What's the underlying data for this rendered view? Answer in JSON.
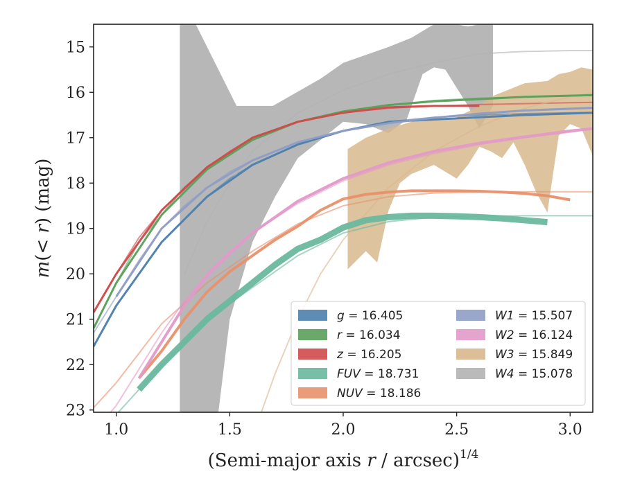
{
  "chart_data": {
    "type": "line",
    "title": "",
    "xlabel": "(Semi-major axis r / arcsec)",
    "xlabel_parts": {
      "prefix": "(Semi-major axis ",
      "var": "r",
      "suffix": " / arcsec)",
      "exponent": "1/4"
    },
    "ylabel": "m(< r) (mag)",
    "ylabel_parts": {
      "var": "m",
      "paren_open": "(< ",
      "r": "r",
      "paren_close": ")",
      "unit": " (mag)"
    },
    "xlim": [
      0.9,
      3.1
    ],
    "ylim": [
      23.05,
      14.5
    ],
    "y_inverted": true,
    "x_ticks": [
      1.0,
      1.5,
      2.0,
      2.5,
      3.0
    ],
    "x_tick_labels": [
      "1.0",
      "1.5",
      "2.0",
      "2.5",
      "3.0"
    ],
    "y_ticks": [
      15,
      16,
      17,
      18,
      19,
      20,
      21,
      22,
      23
    ],
    "y_tick_labels": [
      "15",
      "16",
      "17",
      "18",
      "19",
      "20",
      "21",
      "22",
      "23"
    ],
    "grid": false,
    "legend_position": "lower-right",
    "series": [
      {
        "name": "g",
        "value": "16.405",
        "color": "#4e7fad",
        "model": {
          "x": [
            0.9,
            1.0,
            1.1,
            1.2,
            1.3,
            1.4,
            1.5,
            1.6,
            1.8,
            2.0,
            2.2,
            2.4,
            2.6,
            2.8,
            3.0,
            3.1
          ],
          "y": [
            21.6,
            20.7,
            20.0,
            19.3,
            18.8,
            18.3,
            17.9,
            17.6,
            17.15,
            16.85,
            16.65,
            16.55,
            16.5,
            16.47,
            16.45,
            16.44
          ]
        },
        "data": {
          "x": [
            0.9,
            1.0,
            1.2,
            1.4,
            1.6,
            1.8,
            2.0,
            2.2,
            2.4,
            2.6,
            2.8,
            3.1
          ],
          "y": [
            21.6,
            20.7,
            19.3,
            18.3,
            17.6,
            17.15,
            16.85,
            16.65,
            16.6,
            16.55,
            16.5,
            16.45
          ],
          "width": 3
        }
      },
      {
        "name": "r",
        "value": "16.034",
        "color": "#5aa05a",
        "model": {
          "x": [
            0.9,
            1.0,
            1.1,
            1.2,
            1.3,
            1.4,
            1.5,
            1.6,
            1.8,
            2.0,
            2.2,
            2.4,
            2.6,
            2.8,
            3.0,
            3.1
          ],
          "y": [
            21.2,
            20.2,
            19.3,
            18.7,
            18.1,
            17.7,
            17.35,
            17.05,
            16.65,
            16.42,
            16.28,
            16.18,
            16.13,
            16.1,
            16.08,
            16.07
          ]
        },
        "data": {
          "x": [
            0.9,
            1.0,
            1.2,
            1.4,
            1.6,
            1.8,
            2.0,
            2.2,
            2.4,
            2.6,
            2.8,
            3.1
          ],
          "y": [
            21.2,
            20.2,
            18.7,
            17.7,
            17.05,
            16.65,
            16.42,
            16.28,
            16.2,
            16.15,
            16.1,
            16.06
          ],
          "width": 3
        }
      },
      {
        "name": "z",
        "value": "16.205",
        "color": "#d04a4a",
        "model": {
          "x": [
            0.9,
            1.0,
            1.1,
            1.2,
            1.3,
            1.4,
            1.5,
            1.6,
            1.8,
            2.0,
            2.2,
            2.4,
            2.6,
            2.8,
            3.0,
            3.1
          ],
          "y": [
            20.85,
            20.0,
            19.2,
            18.6,
            18.1,
            17.65,
            17.3,
            17.0,
            16.65,
            16.45,
            16.35,
            16.3,
            16.27,
            16.25,
            16.23,
            16.22
          ]
        },
        "data": {
          "x": [
            0.9,
            1.0,
            1.2,
            1.4,
            1.6,
            1.8,
            2.0,
            2.2,
            2.4,
            2.6
          ],
          "y": [
            20.85,
            20.0,
            18.6,
            17.65,
            17.0,
            16.65,
            16.45,
            16.33,
            16.3,
            16.3
          ],
          "width": 3
        }
      },
      {
        "name": "FUV",
        "value": "18.731",
        "color": "#6ab89f",
        "model": {
          "x": [
            0.9,
            1.0,
            1.2,
            1.4,
            1.6,
            1.8,
            2.0,
            2.2,
            2.4,
            2.6,
            2.8,
            3.0,
            3.1
          ],
          "y": [
            23.8,
            23.1,
            22.0,
            21.0,
            20.3,
            19.6,
            19.1,
            18.85,
            18.75,
            18.73,
            18.72,
            18.72,
            18.72
          ]
        },
        "data": {
          "x": [
            1.1,
            1.2,
            1.3,
            1.4,
            1.5,
            1.6,
            1.7,
            1.8,
            1.9,
            2.0,
            2.1,
            2.2,
            2.3,
            2.4,
            2.5,
            2.6,
            2.7,
            2.8,
            2.9
          ],
          "y": [
            22.55,
            22.0,
            21.5,
            21.0,
            20.6,
            20.2,
            19.8,
            19.45,
            19.25,
            18.98,
            18.82,
            18.75,
            18.72,
            18.72,
            18.73,
            18.75,
            18.78,
            18.82,
            18.86
          ],
          "width": 9
        }
      },
      {
        "name": "NUV",
        "value": "18.186",
        "color": "#e8906b",
        "model": {
          "x": [
            0.9,
            1.0,
            1.2,
            1.4,
            1.6,
            1.8,
            2.0,
            2.2,
            2.4,
            2.6,
            2.8,
            3.0,
            3.1
          ],
          "y": [
            22.95,
            22.4,
            21.1,
            20.2,
            19.5,
            18.9,
            18.5,
            18.3,
            18.22,
            18.2,
            18.19,
            18.19,
            18.19
          ]
        },
        "data": {
          "x": [
            1.1,
            1.2,
            1.3,
            1.4,
            1.5,
            1.6,
            1.7,
            1.8,
            1.9,
            2.0,
            2.1,
            2.2,
            2.3,
            2.4,
            2.5,
            2.6,
            2.7,
            2.8,
            2.9,
            3.0
          ],
          "y": [
            22.3,
            21.7,
            21.0,
            20.4,
            19.95,
            19.6,
            19.25,
            18.95,
            18.6,
            18.35,
            18.25,
            18.2,
            18.17,
            18.17,
            18.17,
            18.18,
            18.2,
            18.23,
            18.28,
            18.37
          ],
          "width": 4
        }
      },
      {
        "name": "W1",
        "value": "15.507",
        "color": "#8e9dc4",
        "model": {
          "x": [
            0.9,
            1.0,
            1.1,
            1.2,
            1.3,
            1.4,
            1.5,
            1.6,
            1.8,
            2.0,
            2.2,
            2.4,
            2.6,
            2.8,
            3.0,
            3.1
          ],
          "y": [
            21.3,
            20.5,
            19.7,
            19.0,
            18.5,
            18.1,
            17.75,
            17.5,
            17.1,
            16.85,
            16.68,
            16.56,
            16.47,
            16.41,
            16.37,
            16.35
          ]
        },
        "data": {
          "x": [
            1.0,
            1.2,
            1.4,
            1.6,
            1.8,
            2.0,
            2.2,
            2.4,
            2.6,
            2.8,
            3.1
          ],
          "y": [
            20.5,
            19.0,
            18.1,
            17.5,
            17.1,
            16.85,
            16.68,
            16.56,
            16.47,
            16.4,
            16.34
          ],
          "width": 3
        }
      },
      {
        "name": "W2",
        "value": "16.124",
        "color": "#e29ac8",
        "model": {
          "x": [
            0.9,
            1.0,
            1.1,
            1.2,
            1.3,
            1.4,
            1.5,
            1.6,
            1.8,
            2.0,
            2.2,
            2.4,
            2.6,
            2.8,
            3.0,
            3.1
          ],
          "y": [
            23.5,
            22.9,
            22.1,
            21.3,
            20.6,
            20.0,
            19.5,
            19.1,
            18.45,
            17.95,
            17.6,
            17.35,
            17.15,
            17.0,
            16.88,
            16.8
          ]
        },
        "data": {
          "x": [
            1.1,
            1.2,
            1.3,
            1.4,
            1.5,
            1.6,
            1.8,
            2.0,
            2.2,
            2.4,
            2.6,
            2.8,
            3.0,
            3.1
          ],
          "y": [
            22.3,
            21.5,
            20.7,
            20.05,
            19.55,
            19.1,
            18.4,
            17.9,
            17.55,
            17.3,
            17.12,
            16.98,
            16.85,
            16.8
          ],
          "width": 4
        }
      },
      {
        "name": "W3",
        "value": "15.849",
        "color": "#d8b88e",
        "model": {
          "x": [
            1.6,
            1.7,
            1.8,
            1.9,
            2.0,
            2.2,
            2.4,
            2.6,
            2.8,
            3.0,
            3.1
          ],
          "y": [
            23.6,
            22.2,
            21.0,
            20.0,
            19.25,
            18.1,
            17.3,
            16.75,
            16.35,
            16.1,
            16.0
          ]
        },
        "band_upper": {
          "x": [
            2.02,
            2.1,
            2.2,
            2.3,
            2.4,
            2.5,
            2.6,
            2.65,
            2.7,
            2.8,
            2.9,
            2.95,
            3.0,
            3.05,
            3.1
          ],
          "y": [
            17.25,
            17.0,
            16.8,
            16.65,
            16.6,
            16.55,
            16.3,
            16.1,
            16.0,
            15.8,
            15.75,
            15.6,
            15.55,
            15.45,
            15.5
          ]
        },
        "band_lower": {
          "x": [
            2.02,
            2.1,
            2.15,
            2.2,
            2.25,
            2.3,
            2.4,
            2.5,
            2.55,
            2.6,
            2.65,
            2.7,
            2.75,
            2.8,
            2.85,
            2.9,
            2.95,
            3.0,
            3.05,
            3.1
          ],
          "y": [
            19.9,
            19.5,
            19.75,
            18.6,
            18.0,
            17.8,
            17.6,
            17.9,
            17.6,
            17.2,
            17.3,
            17.45,
            17.1,
            17.6,
            18.2,
            18.65,
            16.95,
            16.7,
            16.8,
            17.4
          ]
        }
      },
      {
        "name": "W4",
        "value": "15.078",
        "color": "#b3b3b3",
        "model": {
          "x": [
            1.3,
            1.4,
            1.5,
            1.6,
            1.8,
            2.0,
            2.2,
            2.4,
            2.6,
            2.8,
            3.0,
            3.1
          ],
          "y": [
            20.0,
            18.85,
            18.0,
            17.3,
            16.45,
            15.95,
            15.6,
            15.35,
            15.15,
            15.1,
            15.08,
            15.08
          ]
        },
        "band_upper": {
          "x": [
            1.28,
            1.35,
            1.53,
            1.69,
            1.9,
            2.0,
            2.2,
            2.3,
            2.4,
            2.5,
            2.55,
            2.6,
            2.66
          ],
          "y": [
            14.5,
            14.5,
            16.3,
            16.3,
            15.7,
            15.35,
            15.0,
            14.8,
            14.5,
            14.5,
            14.55,
            14.5,
            14.5
          ]
        },
        "band_lower": {
          "x": [
            1.28,
            1.28,
            1.45,
            1.5,
            1.6,
            1.7,
            1.8,
            1.9,
            2.0,
            2.1,
            2.2,
            2.28,
            2.35,
            2.4,
            2.45,
            2.5,
            2.55,
            2.6,
            2.66
          ],
          "y": [
            23.05,
            23.05,
            23.05,
            21.0,
            19.3,
            18.3,
            17.45,
            17.05,
            16.65,
            16.7,
            16.9,
            16.6,
            15.6,
            15.45,
            15.5,
            15.9,
            16.3,
            16.8,
            16.3
          ]
        }
      }
    ]
  }
}
